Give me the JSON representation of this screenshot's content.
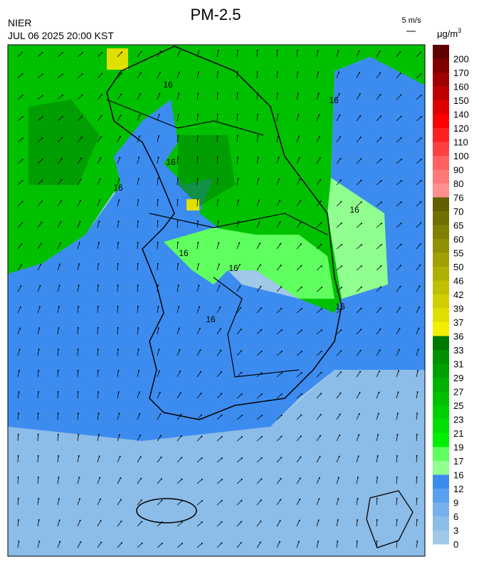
{
  "header": {
    "title": "PM-2.5",
    "agency": "NIER",
    "datetime": "JUL 06 2025 20:00 KST",
    "wind_scale": "5 m/s",
    "unit": "μg/m",
    "unit_exponent": "3"
  },
  "map": {
    "contour_labels": [
      "16",
      "16",
      "16",
      "16",
      "16",
      "16",
      "16",
      "16",
      "16"
    ]
  },
  "colorbar": {
    "labels": [
      "200",
      "170",
      "160",
      "150",
      "140",
      "120",
      "110",
      "100",
      "90",
      "80",
      "76",
      "70",
      "65",
      "60",
      "55",
      "50",
      "46",
      "42",
      "39",
      "37",
      "36",
      "33",
      "31",
      "29",
      "27",
      "25",
      "23",
      "21",
      "19",
      "17",
      "16",
      "12",
      "9",
      "6",
      "3",
      "0"
    ],
    "colors": [
      "#600000",
      "#800000",
      "#a00000",
      "#c00000",
      "#e00000",
      "#ff0000",
      "#ff2020",
      "#ff4040",
      "#ff6060",
      "#ff7878",
      "#ff9090",
      "#606000",
      "#707000",
      "#808000",
      "#909000",
      "#a0a000",
      "#b0b000",
      "#c0c000",
      "#d0d000",
      "#e0e000",
      "#f0f000",
      "#007800",
      "#009000",
      "#00a000",
      "#00b000",
      "#00c000",
      "#00d000",
      "#00e000",
      "#00f000",
      "#60ff60",
      "#90ff90",
      "#3c8cf0",
      "#5aa0f0",
      "#78b0ee",
      "#8cbce8",
      "#a0c8e8"
    ]
  }
}
